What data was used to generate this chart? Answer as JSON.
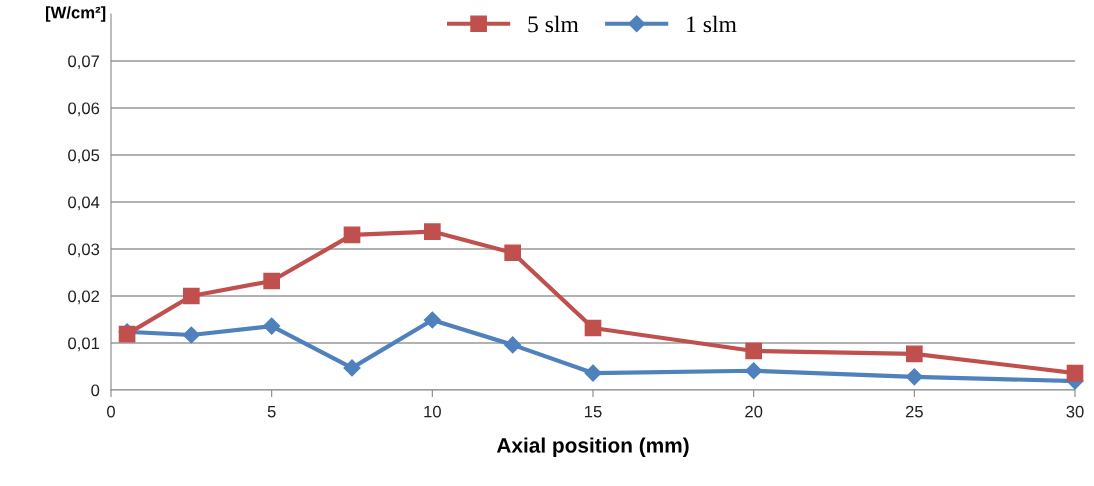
{
  "chart_data": {
    "type": "line",
    "xlabel": "Axial position (mm)",
    "ylabel": "[W/cm²]",
    "xlim": [
      0,
      30
    ],
    "xticks": [
      0,
      5,
      10,
      15,
      20,
      25,
      30
    ],
    "ylim": [
      0,
      0.08
    ],
    "yticks": [
      0,
      {
        "value": 0.01,
        "label": "0,01"
      },
      {
        "value": 0.02,
        "label": "0,02"
      },
      {
        "value": 0.03,
        "label": "0,03"
      },
      {
        "value": 0.04,
        "label": "0,04"
      },
      {
        "value": 0.05,
        "label": "0,05"
      },
      {
        "value": 0.06,
        "label": "0,06"
      },
      {
        "value": 0.07,
        "label": "0,07"
      }
    ],
    "grid": "y",
    "legend": "top",
    "series": [
      {
        "name": "5 slm",
        "color": "#c0504d",
        "marker": "square",
        "x": [
          0.5,
          2.5,
          5,
          7.5,
          10,
          12.5,
          15,
          20,
          25,
          30
        ],
        "values": [
          0.0119,
          0.02,
          0.0232,
          0.033,
          0.0337,
          0.0292,
          0.0132,
          0.0083,
          0.0077,
          0.0036
        ]
      },
      {
        "name": "1 slm",
        "color": "#4f81bd",
        "marker": "diamond",
        "x": [
          0.5,
          2.5,
          5,
          7.5,
          10,
          12.5,
          15,
          20,
          25,
          30
        ],
        "values": [
          0.0124,
          0.0117,
          0.0136,
          0.0047,
          0.0149,
          0.0096,
          0.0036,
          0.0041,
          0.0028,
          0.0019
        ]
      }
    ]
  }
}
